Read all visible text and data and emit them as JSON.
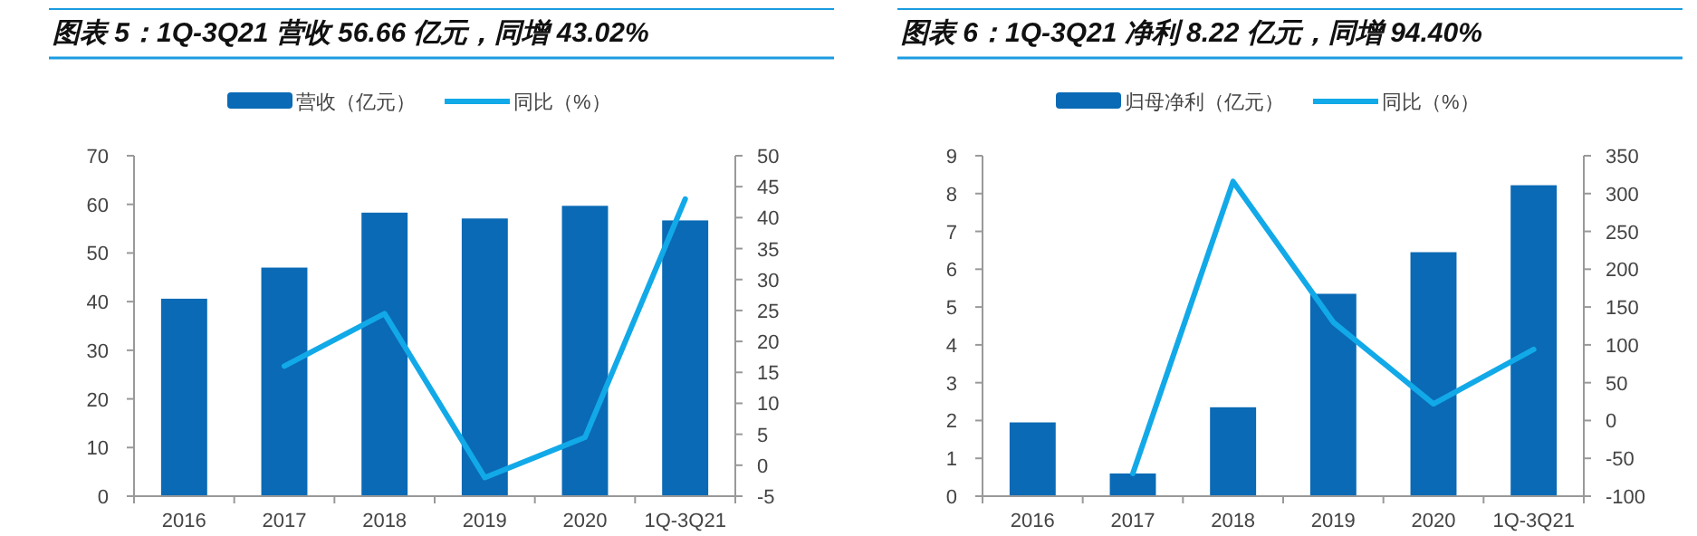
{
  "chart_data": [
    {
      "type": "bar",
      "title": "图表 5：1Q-3Q21 营收 56.66 亿元，同增 43.02%",
      "categories": [
        "2016",
        "2017",
        "2018",
        "2019",
        "2020",
        "1Q-3Q21"
      ],
      "series": [
        {
          "name": "营收（亿元）",
          "color": "#0a6ab5",
          "values": [
            40.6,
            47.0,
            58.3,
            57.1,
            59.7,
            56.7
          ]
        },
        {
          "name": "同比（%）",
          "type": "line",
          "axis": "y2",
          "color": "#12a9e8",
          "values": [
            null,
            16,
            24.5,
            -2,
            4.5,
            43
          ]
        }
      ],
      "ylim": [
        0,
        70
      ],
      "yticks": [
        0,
        10,
        20,
        30,
        40,
        50,
        60,
        70
      ],
      "y2lim": [
        -5,
        50
      ],
      "y2ticks": [
        -5,
        0,
        5,
        10,
        15,
        20,
        25,
        30,
        35,
        40,
        45,
        50
      ],
      "legend": "top"
    },
    {
      "type": "bar",
      "title": "图表 6：1Q-3Q21 净利 8.22 亿元，同增 94.40%",
      "categories": [
        "2016",
        "2017",
        "2018",
        "2019",
        "2020",
        "1Q-3Q21"
      ],
      "series": [
        {
          "name": "归母净利（亿元）",
          "color": "#0a6ab5",
          "values": [
            1.95,
            0.6,
            2.35,
            5.35,
            6.45,
            8.22
          ]
        },
        {
          "name": "同比（%）",
          "type": "line",
          "axis": "y2",
          "color": "#12a9e8",
          "values": [
            null,
            -70,
            316,
            130,
            22,
            94
          ]
        }
      ],
      "ylim": [
        0,
        9
      ],
      "yticks": [
        0,
        1,
        2,
        3,
        4,
        5,
        6,
        7,
        8,
        9
      ],
      "y2lim": [
        -100,
        350
      ],
      "y2ticks": [
        -100,
        -50,
        0,
        50,
        100,
        150,
        200,
        250,
        300,
        350
      ],
      "legend": "top"
    }
  ]
}
